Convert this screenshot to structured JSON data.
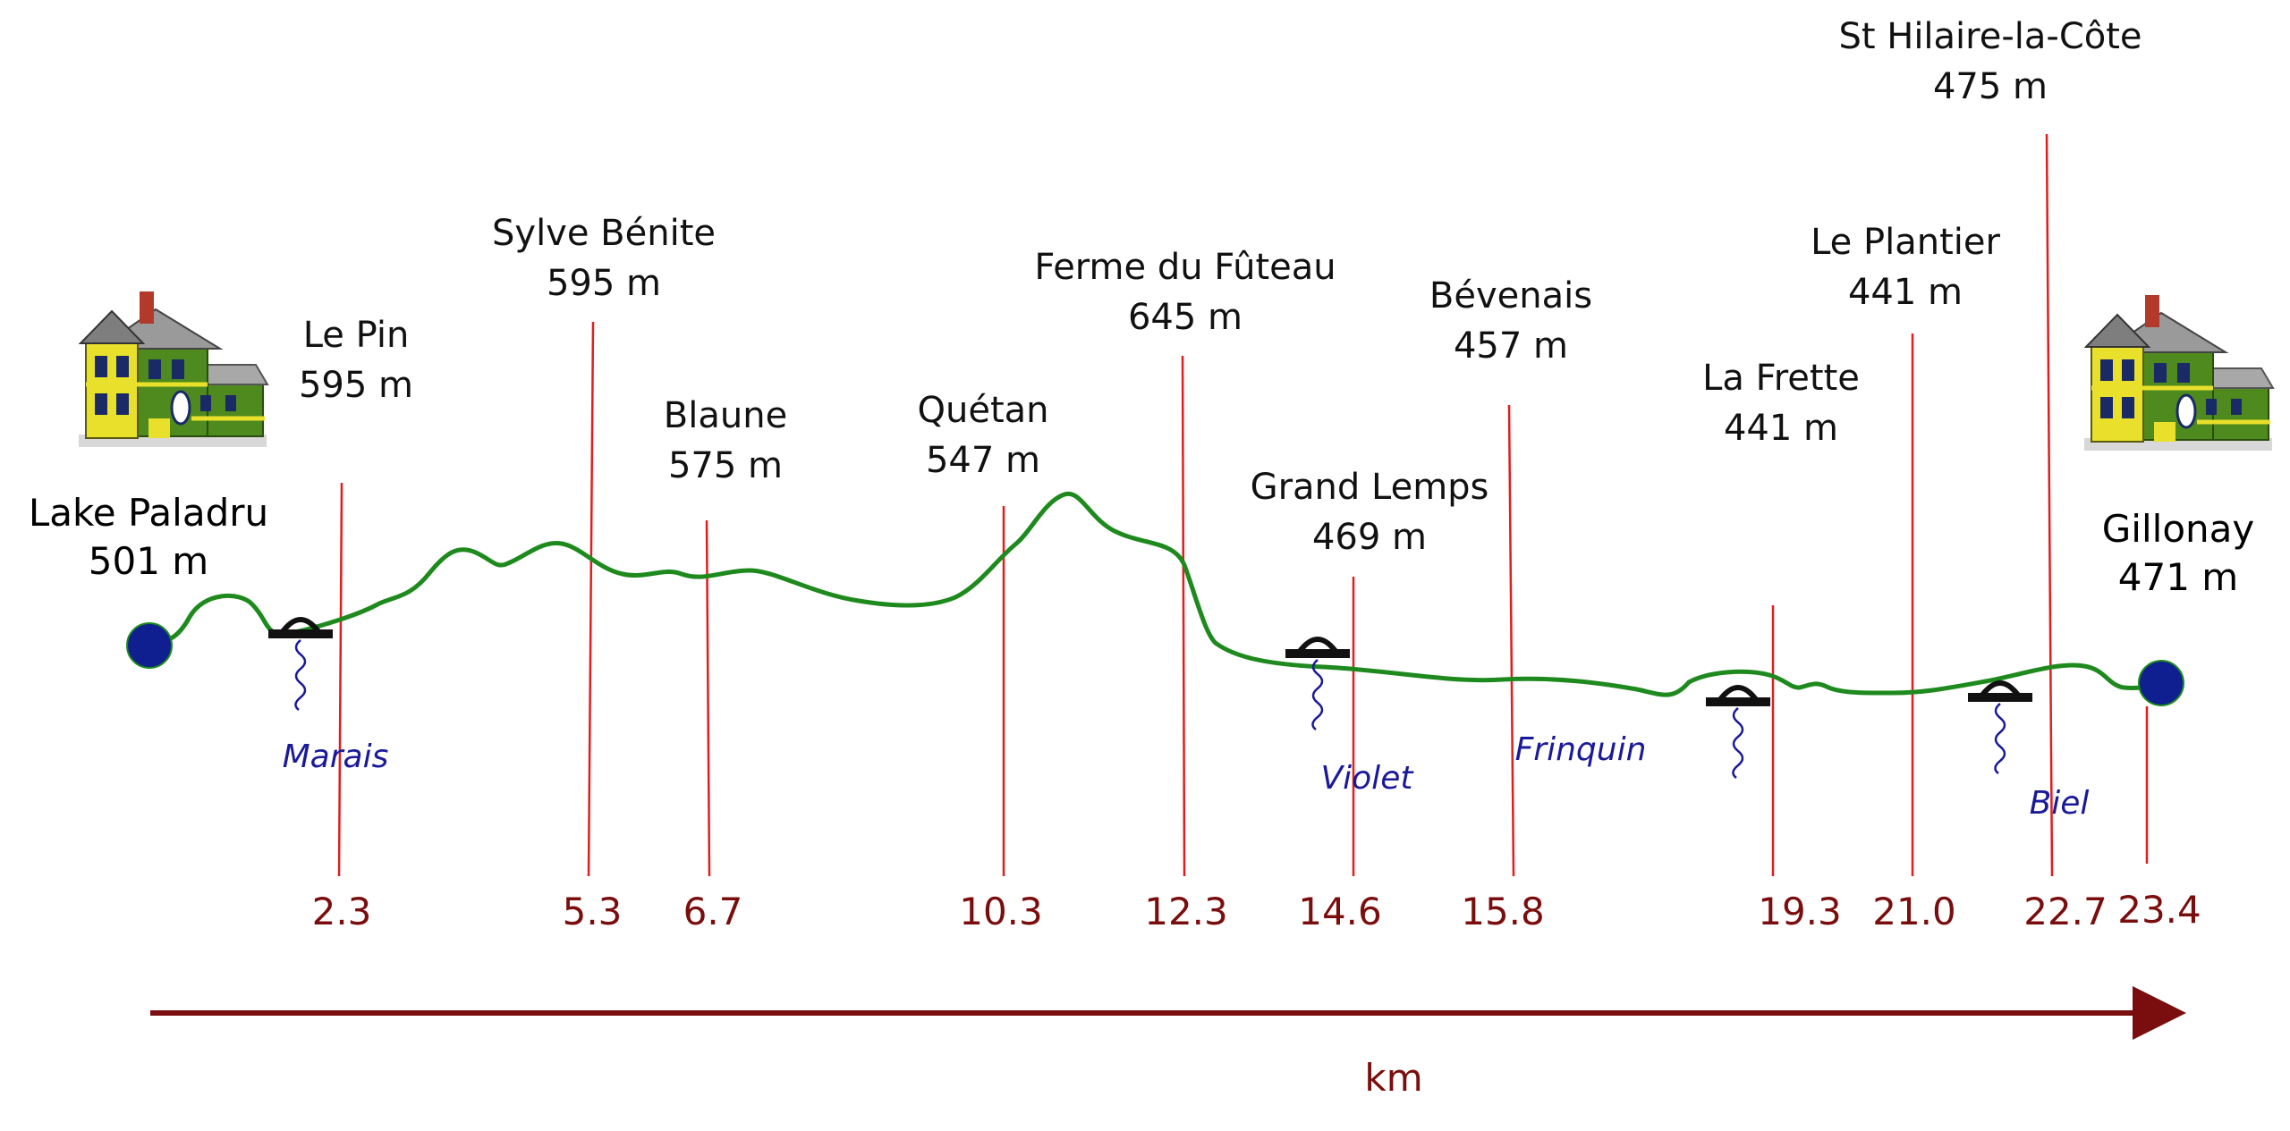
{
  "start": {
    "name": "Lake Paladru",
    "elevation": "501 m"
  },
  "end": {
    "name": "Gillonay",
    "elevation": "471 m"
  },
  "waypoints": [
    {
      "name": "Le Pin",
      "elevation": "595 m",
      "km": "2.3"
    },
    {
      "name": "Sylve Bénite",
      "elevation": "595 m",
      "km": "5.3"
    },
    {
      "name": "Blaune",
      "elevation": "575 m",
      "km": "6.7"
    },
    {
      "name": "Quétan",
      "elevation": "547 m",
      "km": "10.3"
    },
    {
      "name": "Ferme du Fûteau",
      "elevation": "645 m",
      "km": "12.3"
    },
    {
      "name": "Grand Lemps",
      "elevation": "469 m",
      "km": "14.6"
    },
    {
      "name": "Bévenais",
      "elevation": "457 m",
      "km": "15.8"
    },
    {
      "name": "La Frette",
      "elevation": "441 m",
      "km": "19.3"
    },
    {
      "name": "Le Plantier",
      "elevation": "441 m",
      "km": "21.0"
    },
    {
      "name": "St Hilaire-la-Côte",
      "elevation": "475 m",
      "km": "22.7"
    }
  ],
  "final_km": "23.4",
  "rivers": [
    "Marais",
    "Violet",
    "Frinquin",
    "Biel"
  ],
  "axis_label": "km",
  "colors": {
    "profile": "#1e8a1e",
    "marker_lines": "#e01e1e",
    "axis": "#7a0d0d",
    "river_text": "#1a1a99",
    "endpoint": "#0f1f8f"
  },
  "icons": {
    "endpoint_image": "house-icon",
    "crossing": "bridge-icon",
    "stream": "stream-icon"
  }
}
